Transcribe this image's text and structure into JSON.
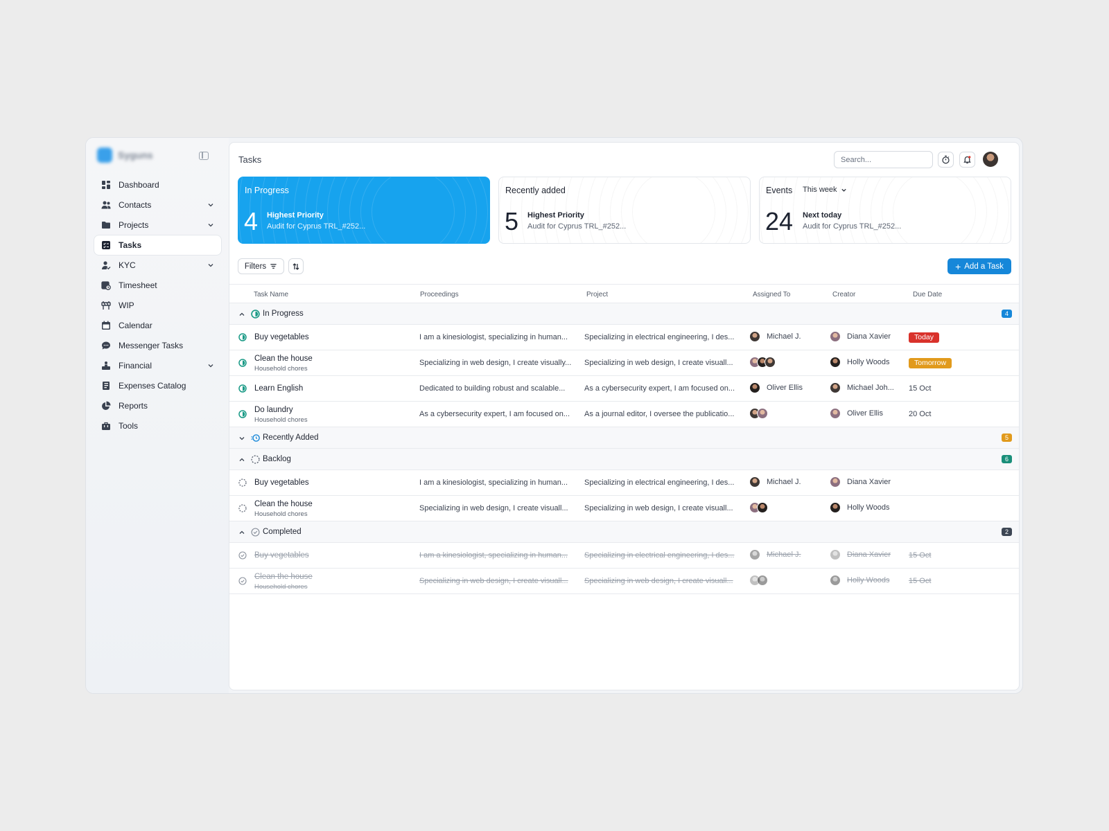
{
  "sidebar": {
    "brand_name": "Syguns",
    "items": [
      {
        "label": "Dashboard",
        "icon": "dashboard-icon",
        "expandable": false,
        "active": false
      },
      {
        "label": "Contacts",
        "icon": "contacts-icon",
        "expandable": true,
        "active": false
      },
      {
        "label": "Projects",
        "icon": "folder-icon",
        "expandable": true,
        "active": false
      },
      {
        "label": "Tasks",
        "icon": "tasks-icon",
        "expandable": false,
        "active": true
      },
      {
        "label": "KYC",
        "icon": "user-check-icon",
        "expandable": true,
        "active": false
      },
      {
        "label": "Timesheet",
        "icon": "timesheet-icon",
        "expandable": false,
        "active": false
      },
      {
        "label": "WIP",
        "icon": "wip-icon",
        "expandable": false,
        "active": false
      },
      {
        "label": "Calendar",
        "icon": "calendar-icon",
        "expandable": false,
        "active": false
      },
      {
        "label": "Messenger Tasks",
        "icon": "chat-icon",
        "expandable": false,
        "active": false
      },
      {
        "label": "Financial",
        "icon": "financial-icon",
        "expandable": true,
        "active": false
      },
      {
        "label": "Expenses Catalog",
        "icon": "catalog-icon",
        "expandable": false,
        "active": false
      },
      {
        "label": "Reports",
        "icon": "pie-chart-icon",
        "expandable": false,
        "active": false
      },
      {
        "label": "Tools",
        "icon": "toolbox-icon",
        "expandable": false,
        "active": false
      }
    ]
  },
  "header": {
    "title": "Tasks",
    "search_placeholder": "Search..."
  },
  "cards": [
    {
      "title": "In Progress",
      "number": "4",
      "subtitle": "Highest Priority",
      "desc": "Audit for Cyprus TRL_#252..."
    },
    {
      "title": "Recently added",
      "number": "5",
      "subtitle": "Highest Priority",
      "desc": "Audit for Cyprus TRL_#252..."
    },
    {
      "title": "Events",
      "week": "This week",
      "number": "24",
      "subtitle": "Next today",
      "desc": "Audit for Cyprus TRL_#252..."
    }
  ],
  "toolbar": {
    "filters_label": "Filters",
    "add_label": "Add a Task"
  },
  "columns": [
    "Task Name",
    "Proceedings",
    "Project",
    "Assigned To",
    "Creator",
    "Due Date"
  ],
  "groups": [
    {
      "label": "In Progress",
      "count": "4",
      "count_color": "#1687d9",
      "expanded": true,
      "status": "in-progress",
      "rows": [
        {
          "name": "Buy vegetables",
          "sub": "",
          "proc": "I am a kinesiologist, specializing in human...",
          "proj": "Specializing in electrical engineering, I des...",
          "assigned": "Michael J.",
          "assigned_count": 1,
          "creator": "Diana Xavier",
          "due": "Today",
          "due_badge": "#d9322b"
        },
        {
          "name": "Clean the house",
          "sub": "Household chores",
          "proc": "Specializing in web design, I create visually...",
          "proj": "Specializing in web design, I create visuall...",
          "assigned": "",
          "assigned_count": 3,
          "creator": "Holly Woods",
          "due": "Tomorrow",
          "due_badge": "#e19a1c"
        },
        {
          "name": "Learn English",
          "sub": "",
          "proc": "Dedicated to building robust and scalable...",
          "proj": "As a cybersecurity expert, I am focused on...",
          "assigned": "Oliver Ellis",
          "assigned_count": 1,
          "creator": "Michael Joh...",
          "due": "15 Oct",
          "due_badge": ""
        },
        {
          "name": "Do laundry",
          "sub": "Household chores",
          "proc": "As a cybersecurity expert, I am focused on...",
          "proj": "As a journal editor, I oversee the publicatio...",
          "assigned": "",
          "assigned_count": 2,
          "creator": "Oliver Ellis",
          "due": "20 Oct",
          "due_badge": ""
        }
      ]
    },
    {
      "label": "Recently Added",
      "count": "5",
      "count_color": "#e19a1c",
      "expanded": false,
      "status": "recent",
      "rows": []
    },
    {
      "label": "Backlog",
      "count": "6",
      "count_color": "#1a8f7a",
      "expanded": true,
      "status": "backlog",
      "rows": [
        {
          "name": "Buy vegetables",
          "sub": "",
          "proc": "I am a kinesiologist, specializing in human...",
          "proj": "Specializing in electrical engineering, I des...",
          "assigned": "Michael J.",
          "assigned_count": 1,
          "creator": "Diana Xavier",
          "due": "",
          "due_badge": ""
        },
        {
          "name": "Clean the house",
          "sub": "Household chores",
          "proc": "Specializing in web design, I create visuall...",
          "proj": "Specializing in web design, I create visuall...",
          "assigned": "",
          "assigned_count": 2,
          "creator": "Holly Woods",
          "due": "",
          "due_badge": ""
        }
      ]
    },
    {
      "label": "Completed",
      "count": "2",
      "count_color": "#3d4654",
      "expanded": true,
      "status": "completed",
      "rows": [
        {
          "name": "Buy vegetables",
          "sub": "",
          "proc": "I am a kinesiologist, specializing in human...",
          "proj": "Specializing in electrical engineering, I des...",
          "assigned": "Michael J.",
          "assigned_count": 1,
          "creator": "Diana Xavier",
          "due": "15 Oct",
          "due_badge": ""
        },
        {
          "name": "Clean the house",
          "sub": "Household chores",
          "proc": "Specializing in web design, I create visuall...",
          "proj": "Specializing in web design, I create visuall...",
          "assigned": "",
          "assigned_count": 2,
          "creator": "Holly Woods",
          "due": "15 Oct",
          "due_badge": ""
        }
      ]
    }
  ],
  "colors": {
    "accent": "#17a3ee",
    "button": "#1687d9",
    "in_progress": "#1a9a86"
  }
}
